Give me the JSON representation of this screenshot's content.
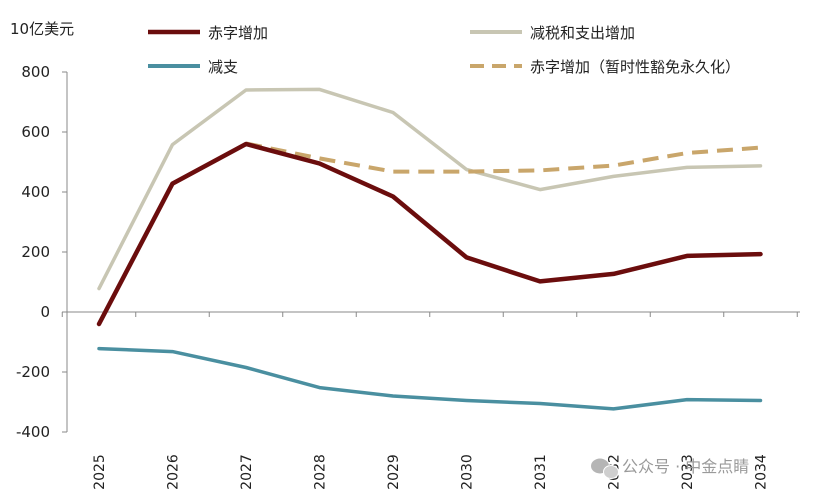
{
  "chart_data": {
    "type": "line",
    "unit_label": "10亿美元",
    "x": [
      "2025",
      "2026",
      "2027",
      "2028",
      "2029",
      "2030",
      "2031",
      "2032",
      "2033",
      "2034"
    ],
    "ylim": [
      -400,
      800
    ],
    "yticks": [
      -400,
      -200,
      0,
      200,
      400,
      600,
      800
    ],
    "ytick_labels": [
      "-400",
      "-200",
      "0",
      "200",
      "400",
      "600",
      "800"
    ],
    "grid": false,
    "legend_position": "top",
    "series": [
      {
        "name": "赤字增加",
        "color": "#6b0d0d",
        "style": "solid",
        "values": [
          -40,
          428,
          560,
          495,
          385,
          182,
          102,
          127,
          187,
          193
        ]
      },
      {
        "name": "减税和支出增加",
        "color": "#c8c6b3",
        "style": "solid",
        "values": [
          78,
          558,
          740,
          742,
          665,
          475,
          408,
          452,
          482,
          487
        ]
      },
      {
        "name": "减支",
        "color": "#4a8fa0",
        "style": "solid",
        "values": [
          -122,
          -132,
          -185,
          -252,
          -280,
          -295,
          -305,
          -323,
          -292,
          -295
        ]
      },
      {
        "name": "赤字增加（暂时性豁免永久化）",
        "color": "#c9a66b",
        "style": "dashed",
        "values": [
          null,
          null,
          562,
          512,
          468,
          468,
          472,
          488,
          530,
          548
        ]
      }
    ]
  },
  "watermark": {
    "icon": "wechat-icon",
    "text": "公众号 · 中金点睛"
  }
}
